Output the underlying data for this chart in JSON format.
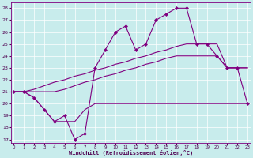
{
  "xlabel": "Windchill (Refroidissement éolien,°C)",
  "background_color": "#c8ecec",
  "grid_color": "#ffffff",
  "line_color": "#800080",
  "x_ticks": [
    0,
    1,
    2,
    3,
    4,
    5,
    6,
    7,
    8,
    9,
    10,
    11,
    12,
    13,
    14,
    15,
    16,
    17,
    18,
    19,
    20,
    21,
    22,
    23
  ],
  "y_ticks": [
    17,
    18,
    19,
    20,
    21,
    22,
    23,
    24,
    25,
    26,
    27,
    28
  ],
  "ylim": [
    16.7,
    28.5
  ],
  "xlim": [
    -0.3,
    23.3
  ],
  "series": [
    {
      "x": [
        0,
        1,
        2,
        3,
        4,
        5,
        6,
        7,
        8,
        9,
        10,
        11,
        12,
        13,
        14,
        15,
        16,
        17,
        18,
        19,
        20,
        21,
        22,
        23
      ],
      "y": [
        21,
        21,
        20.5,
        19.5,
        18.5,
        18.5,
        18.5,
        19.5,
        20,
        20,
        20,
        20,
        20,
        20,
        20,
        20,
        20,
        20,
        20,
        20,
        20,
        20,
        20,
        20
      ],
      "marker": null,
      "linewidth": 0.8,
      "color": "#800080"
    },
    {
      "x": [
        0,
        1,
        2,
        3,
        4,
        5,
        6,
        7,
        8,
        9,
        10,
        11,
        12,
        13,
        14,
        15,
        16,
        17,
        18,
        19,
        20,
        21,
        22,
        23
      ],
      "y": [
        21,
        21,
        21,
        21,
        21,
        21.2,
        21.5,
        21.8,
        22,
        22.3,
        22.5,
        22.8,
        23,
        23.3,
        23.5,
        23.8,
        24,
        24,
        24,
        24,
        24,
        23,
        23,
        23
      ],
      "marker": null,
      "linewidth": 0.8,
      "color": "#800080"
    },
    {
      "x": [
        0,
        1,
        2,
        3,
        4,
        5,
        6,
        7,
        8,
        9,
        10,
        11,
        12,
        13,
        14,
        15,
        16,
        17,
        18,
        19,
        20,
        21,
        22,
        23
      ],
      "y": [
        21,
        21,
        21.2,
        21.5,
        21.8,
        22,
        22.3,
        22.5,
        22.8,
        23,
        23.3,
        23.5,
        23.8,
        24,
        24.3,
        24.5,
        24.8,
        25,
        25,
        25,
        25,
        23,
        23,
        23
      ],
      "marker": null,
      "linewidth": 0.8,
      "color": "#800080"
    },
    {
      "x": [
        0,
        1,
        2,
        3,
        4,
        5,
        6,
        7,
        8,
        9,
        10,
        11,
        12,
        13,
        14,
        15,
        16,
        17,
        18,
        19,
        20,
        21,
        22,
        23
      ],
      "y": [
        21,
        21,
        20.5,
        19.5,
        18.5,
        19,
        17,
        17.5,
        23,
        24.5,
        26,
        26.5,
        24.5,
        25,
        27,
        27.5,
        28,
        28,
        25,
        25,
        24,
        23,
        23,
        20
      ],
      "marker": "D",
      "markersize": 2.0,
      "linewidth": 0.8,
      "color": "#800080"
    }
  ]
}
